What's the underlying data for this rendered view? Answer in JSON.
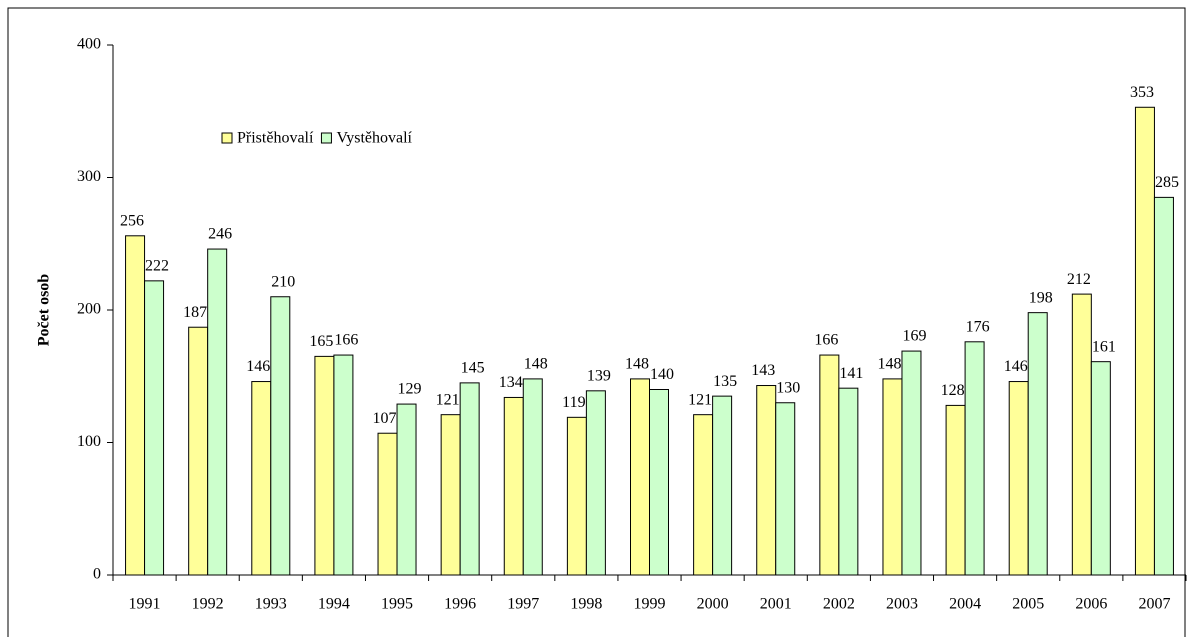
{
  "chart_data": {
    "type": "bar",
    "y_label": "Počet osob",
    "categories": [
      "1991",
      "1992",
      "1993",
      "1994",
      "1995",
      "1996",
      "1997",
      "1998",
      "1999",
      "2000",
      "2001",
      "2002",
      "2003",
      "2004",
      "2005",
      "2006",
      "2007"
    ],
    "series": [
      {
        "name": "Přistěhovalí",
        "color": "#ffff99",
        "values": [
          256,
          187,
          146,
          165,
          107,
          121,
          134,
          119,
          148,
          121,
          143,
          166,
          148,
          128,
          146,
          212,
          353
        ]
      },
      {
        "name": "Vystěhovalí",
        "color": "#ccffcc",
        "values": [
          222,
          246,
          210,
          166,
          129,
          145,
          148,
          139,
          140,
          135,
          130,
          141,
          169,
          176,
          198,
          161,
          285
        ]
      }
    ],
    "ylim": [
      0,
      400
    ],
    "yticks": [
      0,
      100,
      200,
      300,
      400
    ],
    "grid": false
  }
}
